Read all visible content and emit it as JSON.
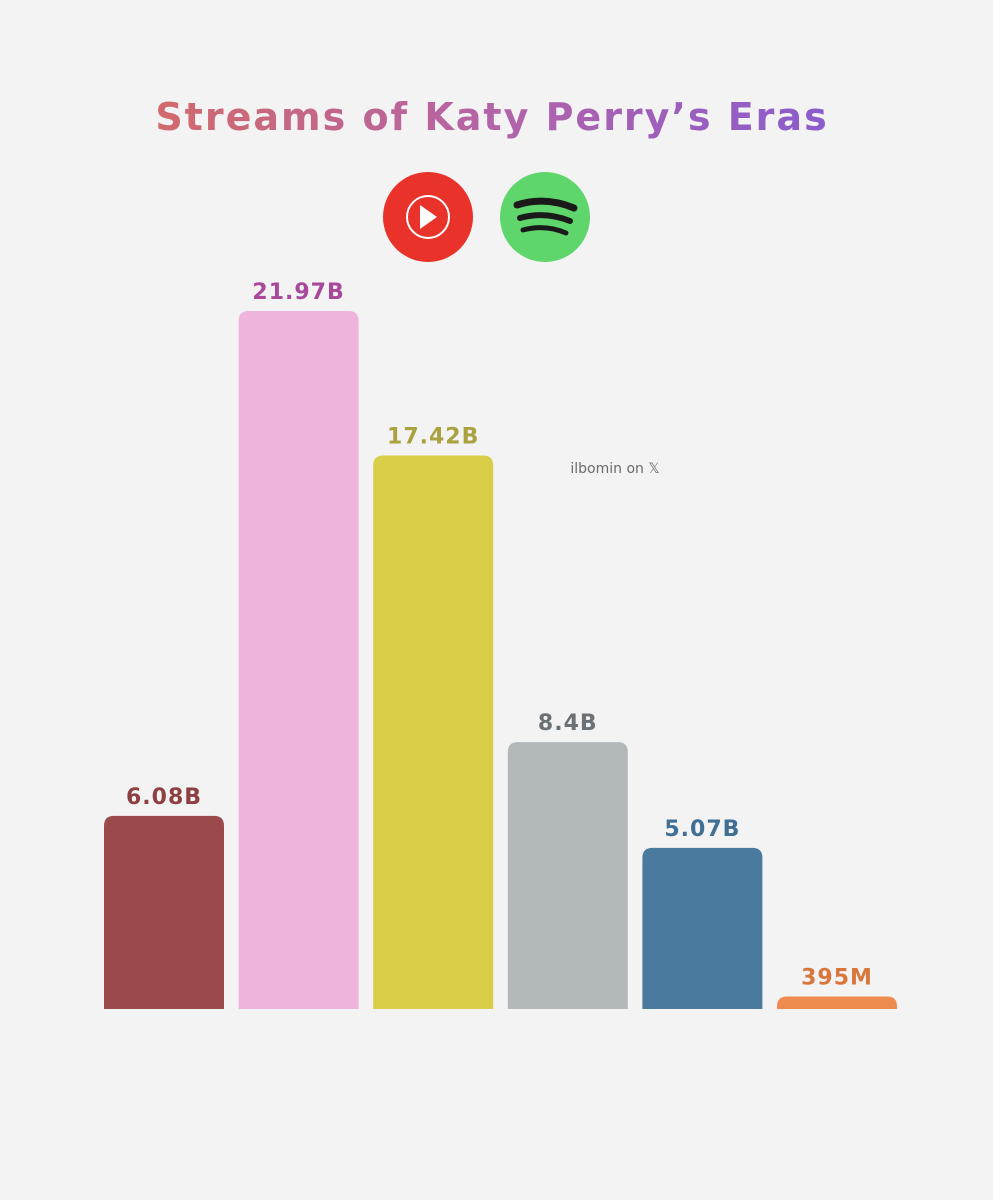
{
  "chart_data": {
    "type": "bar",
    "title": "Streams of Katy Perry’s Eras",
    "annotation": "ilbomin on 𝕏",
    "values": [
      6.08,
      21.97,
      17.42,
      8.4,
      5.07,
      0.395
    ],
    "value_labels": [
      "6.08B",
      "21.97B",
      "17.42B",
      "8.4B",
      "5.07B",
      "395M"
    ],
    "colors": [
      "#9b4a4b",
      "#efb4db",
      "#d8ce48",
      "#b3b8bb",
      "#4a7a9e",
      "#ee8c4f"
    ],
    "label_colors": [
      "#8e3f41",
      "#a8489b",
      "#aaa23f",
      "#6a7277",
      "#3f6f95",
      "#d9763c"
    ]
  }
}
